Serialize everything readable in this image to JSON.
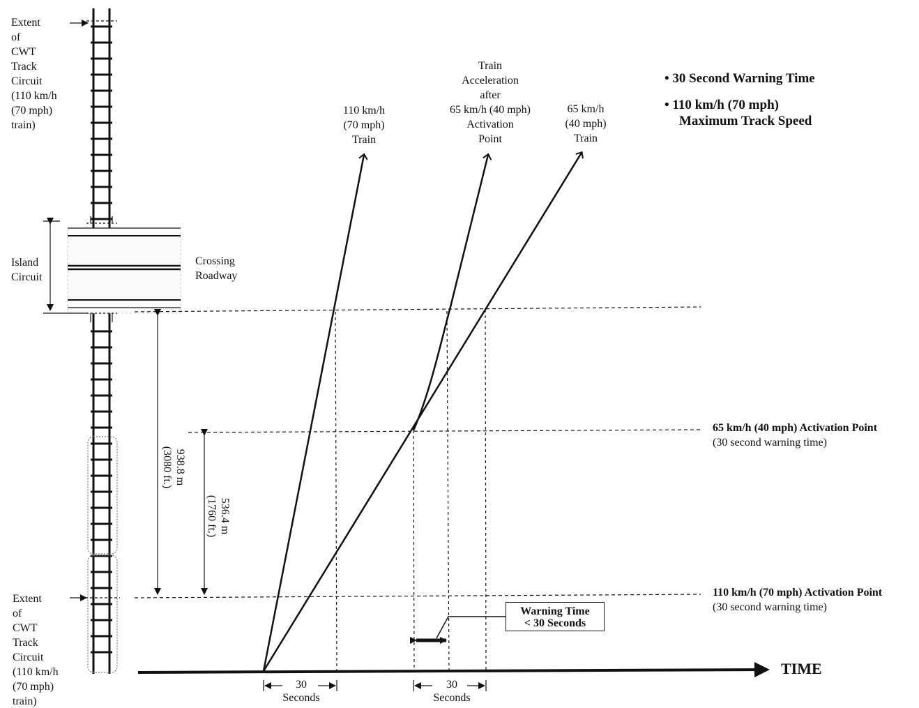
{
  "extent_top": [
    "Extent",
    "of",
    "CWT",
    "Track",
    "Circuit",
    "(110 km/h",
    "(70 mph)",
    "train)"
  ],
  "extent_bottom": [
    "Extent",
    "of",
    "CWT",
    "Track",
    "Circuit",
    "(110 km/h",
    "(70 mph)",
    "train)"
  ],
  "island_circuit": [
    "Island",
    "Circuit"
  ],
  "crossing_roadway": [
    "Crossing",
    "Roadway"
  ],
  "train_110": [
    "110 km/h",
    "(70 mph)",
    "Train"
  ],
  "train_accel": [
    "Train",
    "Acceleration",
    "after",
    "65 km/h (40 mph)",
    "Activation",
    "Point"
  ],
  "train_65": [
    "65 km/h",
    "(40 mph)",
    "Train"
  ],
  "bullets": [
    "30 Second Warning Time",
    "110 km/h (70 mph)",
    "Maximum Track Speed"
  ],
  "activation_65": {
    "title": "65 km/h (40 mph) Activation Point",
    "note": "(30 second warning time)"
  },
  "activation_110": {
    "title": "110 km/h (70 mph) Activation Point",
    "note": "(30 second warning time)"
  },
  "distance_938": [
    "938.8 m",
    "(3080 ft.)"
  ],
  "distance_536": [
    "536.4 m",
    "(1760 ft.)"
  ],
  "warning_box": [
    "Warning Time",
    "< 30 Seconds"
  ],
  "time_axis_label": "TIME",
  "interval_1": {
    "value": "30",
    "unit": "Seconds"
  },
  "interval_2": {
    "value": "30",
    "unit": "Seconds"
  }
}
